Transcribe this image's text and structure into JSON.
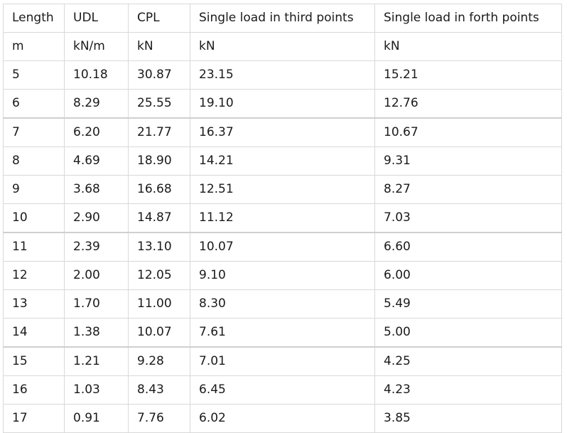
{
  "table": {
    "header": [
      "Length",
      "UDL",
      "CPL",
      "Single load in third points",
      "Single load in forth points"
    ],
    "units": [
      "m",
      "kN/m",
      "kN",
      "kN",
      "kN"
    ],
    "rows": [
      [
        "5",
        "10.18",
        "30.87",
        "23.15",
        "15.21"
      ],
      [
        "6",
        "8.29",
        "25.55",
        "19.10",
        "12.76"
      ],
      [
        "7",
        "6.20",
        "21.77",
        "16.37",
        "10.67"
      ],
      [
        "8",
        "4.69",
        "18.90",
        "14.21",
        "9.31"
      ],
      [
        "9",
        "3.68",
        "16.68",
        "12.51",
        "8.27"
      ],
      [
        "10",
        "2.90",
        "14.87",
        "11.12",
        "7.03"
      ],
      [
        "11",
        "2.39",
        "13.10",
        "10.07",
        "6.60"
      ],
      [
        "12",
        "2.00",
        "12.05",
        "9.10",
        "6.00"
      ],
      [
        "13",
        "1.70",
        "11.00",
        "8.30",
        "5.49"
      ],
      [
        "14",
        "1.38",
        "10.07",
        "7.61",
        "5.00"
      ],
      [
        "15",
        "1.21",
        "9.28",
        "7.01",
        "4.25"
      ],
      [
        "16",
        "1.03",
        "8.43",
        "6.45",
        "4.23"
      ],
      [
        "17",
        "0.91",
        "7.76",
        "6.02",
        "3.85"
      ]
    ]
  }
}
